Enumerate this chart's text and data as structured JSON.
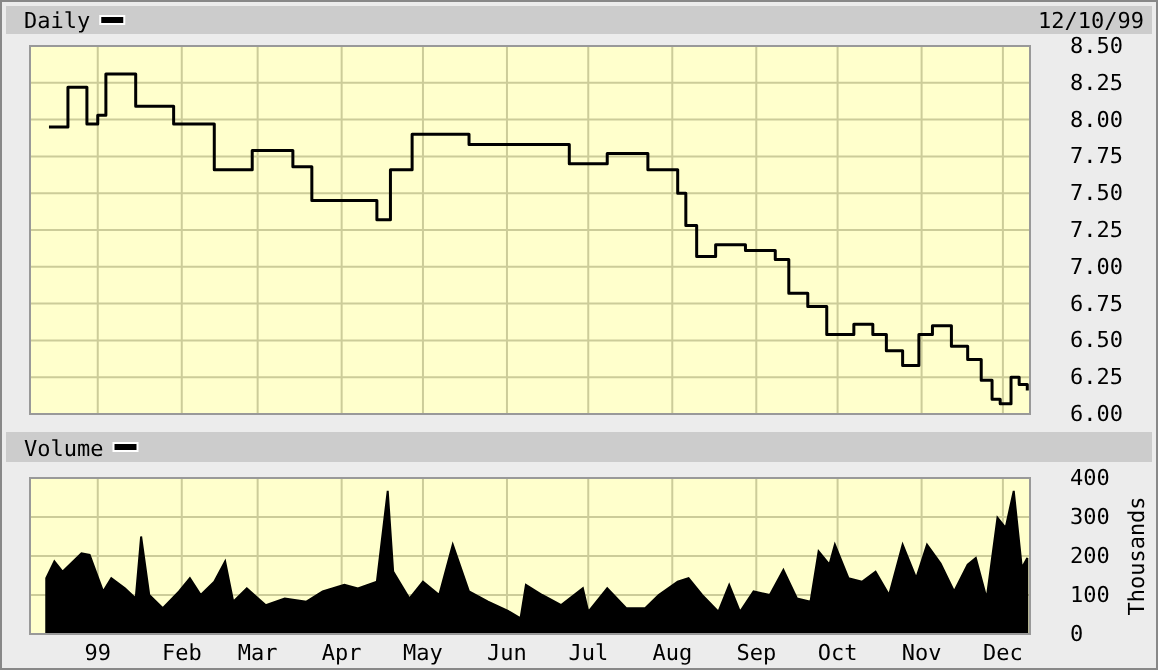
{
  "chart_data": [
    {
      "type": "step",
      "annotations": [
        "12/10/99"
      ],
      "legend": "top left",
      "grid": true,
      "tick_labels": "y",
      "x": [
        "1998-12-14",
        "1998-12-21",
        "1998-12-28",
        "1999-01-01",
        "1999-01-04",
        "1999-01-15",
        "1999-01-29",
        "1999-02-13",
        "1999-02-27",
        "1999-03-14",
        "1999-03-21",
        "1999-04-05",
        "1999-04-14",
        "1999-04-19",
        "1999-04-27",
        "1999-05-18",
        "1999-06-08",
        "1999-06-24",
        "1999-07-08",
        "1999-07-17",
        "1999-07-23",
        "1999-08-03",
        "1999-08-06",
        "1999-08-10",
        "1999-08-17",
        "1999-08-28",
        "1999-09-08",
        "1999-09-13",
        "1999-09-20",
        "1999-09-27",
        "1999-10-07",
        "1999-10-14",
        "1999-10-19",
        "1999-10-25",
        "1999-10-31",
        "1999-11-05",
        "1999-11-12",
        "1999-11-18",
        "1999-11-23",
        "1999-11-27",
        "1999-11-30",
        "1999-12-04",
        "1999-12-07",
        "1999-12-10"
      ],
      "series": [
        {
          "name": "Daily",
          "color": "#000000",
          "values": [
            7.95,
            8.22,
            7.97,
            8.03,
            8.31,
            8.09,
            7.97,
            7.66,
            7.79,
            7.68,
            7.45,
            7.45,
            7.32,
            7.66,
            7.9,
            7.83,
            7.83,
            7.7,
            7.77,
            7.77,
            7.66,
            7.5,
            7.28,
            7.07,
            7.15,
            7.11,
            7.05,
            6.82,
            6.73,
            6.54,
            6.61,
            6.54,
            6.43,
            6.33,
            6.54,
            6.6,
            6.46,
            6.37,
            6.23,
            6.1,
            6.07,
            6.25,
            6.2,
            6.16
          ]
        }
      ],
      "xlim": [
        "1998-12-07",
        "1999-12-11"
      ],
      "xticks": [
        {
          "value": "1999-01-01",
          "label": null
        },
        {
          "value": "1999-02-01",
          "label": null
        },
        {
          "value": "1999-03-01",
          "label": null
        },
        {
          "value": "1999-04-01",
          "label": null
        },
        {
          "value": "1999-05-01",
          "label": null
        },
        {
          "value": "1999-06-01",
          "label": null
        },
        {
          "value": "1999-07-01",
          "label": null
        },
        {
          "value": "1999-08-01",
          "label": null
        },
        {
          "value": "1999-09-01",
          "label": null
        },
        {
          "value": "1999-10-01",
          "label": null
        },
        {
          "value": "1999-11-01",
          "label": null
        },
        {
          "value": "1999-12-01",
          "label": null
        }
      ],
      "ylim": [
        6,
        8.5
      ],
      "yticks": [
        {
          "value": 6,
          "label": "6.00"
        },
        {
          "value": 6.25,
          "label": "6.25"
        },
        {
          "value": 6.5,
          "label": "6.50"
        },
        {
          "value": 6.75,
          "label": "6.75"
        },
        {
          "value": 7,
          "label": "7.00"
        },
        {
          "value": 7.25,
          "label": "7.25"
        },
        {
          "value": 7.5,
          "label": "7.50"
        },
        {
          "value": 7.75,
          "label": "7.75"
        },
        {
          "value": 8,
          "label": "8.00"
        },
        {
          "value": 8.25,
          "label": "8.25"
        },
        {
          "value": 8.5,
          "label": "8.50"
        }
      ]
    },
    {
      "type": "area",
      "legend": "top left",
      "grid": true,
      "ylabel": "Thousands",
      "x": [
        "1998-12-13",
        "1998-12-16",
        "1998-12-19",
        "1998-12-26",
        "1998-12-29",
        "1999-01-03",
        "1999-01-06",
        "1999-01-11",
        "1999-01-15",
        "1999-01-17",
        "1999-01-20",
        "1999-01-25",
        "1999-01-31",
        "1999-02-04",
        "1999-02-08",
        "1999-02-13",
        "1999-02-17",
        "1999-02-20",
        "1999-02-25",
        "1999-03-04",
        "1999-03-11",
        "1999-03-19",
        "1999-03-25",
        "1999-04-02",
        "1999-04-07",
        "1999-04-14",
        "1999-04-18",
        "1999-04-20",
        "1999-04-26",
        "1999-05-01",
        "1999-05-07",
        "1999-05-12",
        "1999-05-18",
        "1999-05-25",
        "1999-06-02",
        "1999-06-06",
        "1999-06-08",
        "1999-06-14",
        "1999-06-21",
        "1999-06-29",
        "1999-07-01",
        "1999-07-08",
        "1999-07-15",
        "1999-07-22",
        "1999-07-27",
        "1999-08-03",
        "1999-08-07",
        "1999-08-12",
        "1999-08-18",
        "1999-08-22",
        "1999-08-26",
        "1999-08-31",
        "1999-09-06",
        "1999-09-11",
        "1999-09-16",
        "1999-09-21",
        "1999-09-24",
        "1999-09-28",
        "1999-09-30",
        "1999-10-05",
        "1999-10-10",
        "1999-10-15",
        "1999-10-20",
        "1999-10-25",
        "1999-10-30",
        "1999-11-03",
        "1999-11-08",
        "1999-11-13",
        "1999-11-18",
        "1999-11-21",
        "1999-11-25",
        "1999-11-29",
        "1999-12-02",
        "1999-12-05",
        "1999-12-08",
        "1999-12-10"
      ],
      "series": [
        {
          "name": "Volume",
          "color": "#000000",
          "values": [
            143,
            186,
            160,
            207,
            203,
            109,
            143,
            117,
            91,
            250,
            100,
            66,
            109,
            143,
            100,
            134,
            186,
            83,
            117,
            74,
            91,
            83,
            109,
            126,
            117,
            134,
            367,
            160,
            91,
            134,
            100,
            229,
            109,
            83,
            57,
            40,
            126,
            100,
            74,
            117,
            57,
            117,
            66,
            66,
            100,
            134,
            143,
            100,
            57,
            126,
            57,
            109,
            100,
            164,
            91,
            83,
            212,
            178,
            229,
            143,
            134,
            160,
            100,
            229,
            143,
            229,
            181,
            109,
            178,
            195,
            91,
            298,
            272,
            367,
            169,
            195
          ]
        }
      ],
      "xlim": [
        "1998-12-07",
        "1999-12-11"
      ],
      "xticks": [
        {
          "value": "1999-01-01",
          "label": "99"
        },
        {
          "value": "1999-02-01",
          "label": "Feb"
        },
        {
          "value": "1999-03-01",
          "label": "Mar"
        },
        {
          "value": "1999-04-01",
          "label": "Apr"
        },
        {
          "value": "1999-05-01",
          "label": "May"
        },
        {
          "value": "1999-06-01",
          "label": "Jun"
        },
        {
          "value": "1999-07-01",
          "label": "Jul"
        },
        {
          "value": "1999-08-01",
          "label": "Aug"
        },
        {
          "value": "1999-09-01",
          "label": "Sep"
        },
        {
          "value": "1999-10-01",
          "label": "Oct"
        },
        {
          "value": "1999-11-01",
          "label": "Nov"
        },
        {
          "value": "1999-12-01",
          "label": "Dec"
        }
      ],
      "ylim": [
        0,
        400
      ],
      "yticks": [
        0,
        100,
        200,
        300,
        400
      ]
    }
  ]
}
